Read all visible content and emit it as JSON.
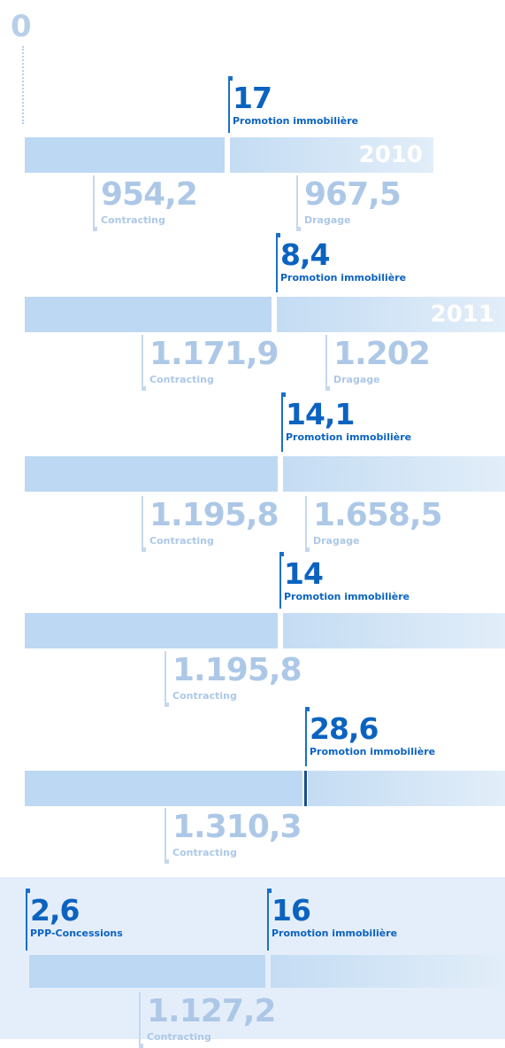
{
  "start": "0",
  "rows": [
    {
      "top": [
        {
          "value": "17",
          "label": "Promotion immobilière"
        }
      ],
      "year": "2010",
      "bottom": [
        {
          "value": "954,2",
          "label": "Contracting"
        },
        {
          "value": "967,5",
          "label": "Dragage"
        }
      ]
    },
    {
      "top": [
        {
          "value": "8,4",
          "label": "Promotion immobilière"
        }
      ],
      "year": "2011",
      "bottom": [
        {
          "value": "1.171,9",
          "label": "Contracting"
        },
        {
          "value": "1.202",
          "label": "Dragage"
        }
      ]
    },
    {
      "top": [
        {
          "value": "14,1",
          "label": "Promotion immobilière"
        }
      ],
      "bottom": [
        {
          "value": "1.195,8",
          "label": "Contracting"
        },
        {
          "value": "1.658,5",
          "label": "Dragage"
        }
      ]
    },
    {
      "top": [
        {
          "value": "14",
          "label": "Promotion immobilière"
        }
      ],
      "bottom": [
        {
          "value": "1.195,8",
          "label": "Contracting"
        }
      ]
    },
    {
      "top": [
        {
          "value": "28,6",
          "label": "Promotion immobilière"
        }
      ],
      "bottom": [
        {
          "value": "1.310,3",
          "label": "Contracting"
        }
      ]
    },
    {
      "top": [
        {
          "value": "2,6",
          "label": "PPP-Concessions"
        },
        {
          "value": "16",
          "label": "Promotion immobilière"
        }
      ],
      "bottom": [
        {
          "value": "1.127,2",
          "label": "Contracting"
        }
      ]
    }
  ]
}
